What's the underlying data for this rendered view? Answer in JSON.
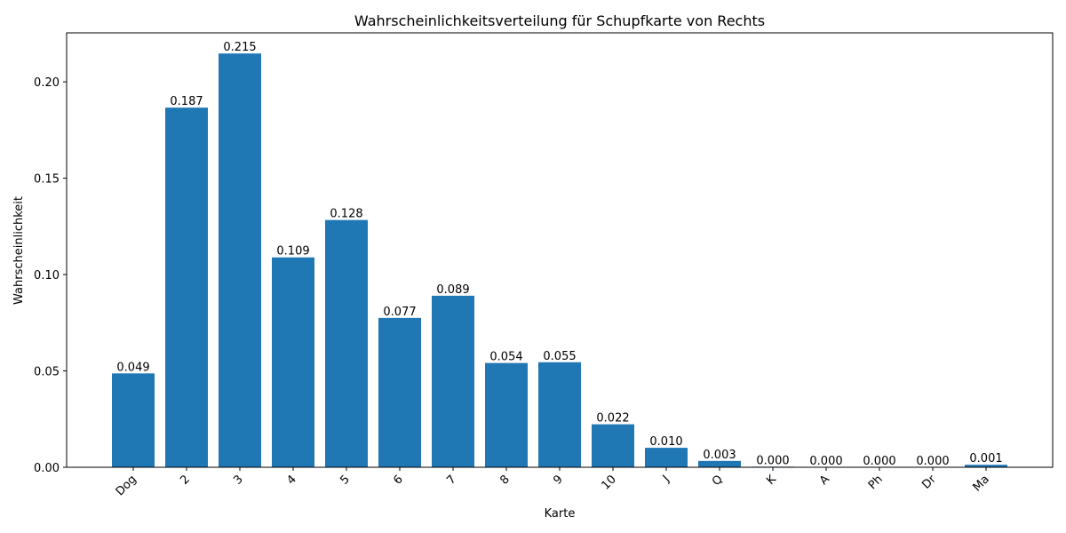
{
  "chart_data": {
    "type": "bar",
    "title": "Wahrscheinlichkeitsverteilung für Schupfkarte von Rechts",
    "xlabel": "Karte",
    "ylabel": "Wahrscheinlichkeit",
    "categories": [
      "Dog",
      "2",
      "3",
      "4",
      "5",
      "6",
      "7",
      "8",
      "9",
      "10",
      "J",
      "Q",
      "K",
      "A",
      "Ph",
      "Dr",
      "Ma"
    ],
    "values": [
      0.0487,
      0.1866,
      0.2147,
      0.1089,
      0.1283,
      0.0775,
      0.089,
      0.0541,
      0.0545,
      0.0223,
      0.0101,
      0.0033,
      0.0003,
      0.0,
      0.0,
      0.0,
      0.0013
    ],
    "data_labels": [
      "0.049",
      "0.187",
      "0.215",
      "0.109",
      "0.128",
      "0.077",
      "0.089",
      "0.054",
      "0.055",
      "0.022",
      "0.010",
      "0.003",
      "0.000",
      "0.000",
      "0.000",
      "0.000",
      "0.001"
    ],
    "yticks": [
      0.0,
      0.05,
      0.1,
      0.15,
      0.2
    ],
    "ytick_labels": [
      "0.00",
      "0.05",
      "0.10",
      "0.15",
      "0.20"
    ],
    "ylim": [
      0,
      0.2254
    ],
    "grid": false,
    "bar_color": "#1f77b4"
  }
}
